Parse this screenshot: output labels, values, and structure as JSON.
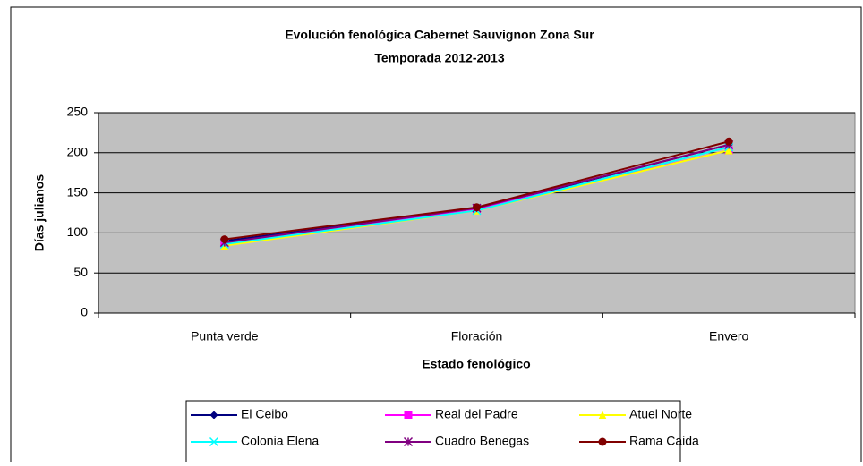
{
  "chart_data": {
    "type": "line",
    "title": "Evolución fenológica Cabernet Sauvignon Zona Sur",
    "subtitle": "Temporada 2012-2013",
    "y_label": "Días julianos",
    "x_label": "Estado fenológico",
    "categories": [
      "Punta verde",
      "Floración",
      "Envero"
    ],
    "series": [
      {
        "name": "El Ceibo",
        "color": "#000080",
        "marker": "diamond",
        "values": [
          90,
          130,
          210
        ]
      },
      {
        "name": "Real del Padre",
        "color": "#ff00ff",
        "marker": "square",
        "values": [
          87,
          130,
          203
        ]
      },
      {
        "name": "Atuel Norte",
        "color": "#ffff00",
        "marker": "triangle",
        "values": [
          84,
          128,
          203
        ]
      },
      {
        "name": "Colonia Elena",
        "color": "#00ffff",
        "marker": "x",
        "values": [
          86,
          128,
          207
        ]
      },
      {
        "name": "Cuadro Benegas",
        "color": "#800080",
        "marker": "star",
        "values": [
          88,
          131,
          210
        ]
      },
      {
        "name": "Rama Caida",
        "color": "#800000",
        "marker": "circle",
        "values": [
          92,
          132,
          214
        ]
      }
    ],
    "ylim": [
      0,
      250
    ],
    "yticks": [
      0,
      50,
      100,
      150,
      200,
      250
    ],
    "grid": true,
    "legend": "bottom"
  }
}
